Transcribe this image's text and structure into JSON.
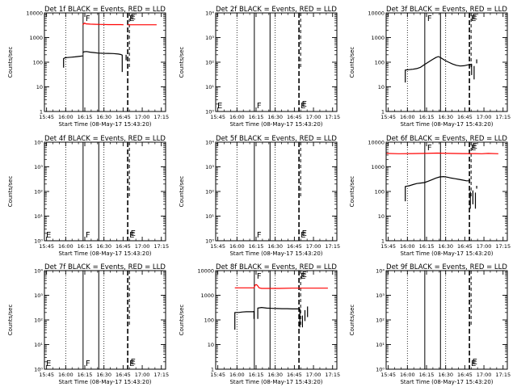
{
  "chart_data": [
    {
      "type": "line",
      "title": "Det 1f BLACK = Events, RED = LLD",
      "xlabel": "Start Time (08-May-17 15:43:20)",
      "ylabel": "Counts/sec",
      "ylog": true,
      "ylim": [
        1,
        10000
      ],
      "ytick_values": [
        1,
        10,
        100,
        1000,
        10000
      ],
      "ytick_labels": [
        "1",
        "10",
        "100",
        "1000",
        "10000"
      ],
      "xlim": [
        0,
        95
      ],
      "xtick_values": [
        1.67,
        16.67,
        31.67,
        46.67,
        61.67,
        76.67,
        91.67
      ],
      "xtick_labels": [
        "15:45",
        "16:00",
        "16:15",
        "16:30",
        "16:45",
        "17:00",
        "17:15"
      ],
      "flags": [
        "F",
        "E",
        "E"
      ],
      "series": [
        {
          "color": "#ff0000",
          "segments": [
            [
              [
                30,
                3300
              ],
              [
                30.5,
                3500
              ],
              [
                31.5,
                3900
              ],
              [
                32,
                3800
              ],
              [
                32.5,
                3600
              ],
              [
                36,
                3500
              ],
              [
                40,
                3450
              ],
              [
                45,
                3400
              ],
              [
                50,
                3350
              ],
              [
                55,
                3350
              ],
              [
                60,
                3350
              ],
              [
                62,
                3300
              ]
            ],
            [
              [
                65,
                3300
              ],
              [
                75,
                3300
              ],
              [
                88,
                3300
              ]
            ]
          ]
        },
        {
          "color": "#000000",
          "segments": [
            [
              [
                15,
                60
              ],
              [
                15,
                140
              ],
              [
                16,
                150
              ],
              [
                18,
                155
              ],
              [
                21,
                160
              ],
              [
                24,
                165
              ],
              [
                26,
                170
              ],
              [
                28,
                175
              ],
              [
                30,
                180
              ]
            ],
            [
              [
                30,
                240
              ],
              [
                31,
                265
              ],
              [
                33,
                270
              ],
              [
                36,
                255
              ],
              [
                39,
                245
              ],
              [
                42,
                235
              ],
              [
                46,
                230
              ],
              [
                50,
                228
              ],
              [
                54,
                225
              ],
              [
                58,
                215
              ],
              [
                60,
                205
              ],
              [
                61,
                195
              ],
              [
                61,
                40
              ]
            ],
            [
              [
                64,
                200
              ],
              [
                64,
                120
              ]
            ]
          ]
        }
      ]
    },
    {
      "type": "line",
      "title": "Det 2f BLACK = Events, RED = LLD",
      "xlabel": "Start Time (08-May-17 15:43:20)",
      "ylabel": "Counts/sec",
      "ylog": true,
      "ylim": [
        1,
        10000
      ],
      "ytick_values": [
        1,
        10,
        100,
        1000,
        10000
      ],
      "ytick_labels": [
        "10⁰",
        "10¹",
        "10²",
        "10³",
        "10⁴"
      ],
      "xlim": [
        0,
        95
      ],
      "xtick_values": [
        1.67,
        16.67,
        31.67,
        46.67,
        61.67,
        76.67,
        91.67
      ],
      "xtick_labels": [
        "15:45",
        "16:00",
        "16:15",
        "16:30",
        "16:45",
        "17:00",
        "17:15"
      ],
      "flags": [
        "E",
        "F",
        "E",
        "E"
      ],
      "series": []
    },
    {
      "type": "line",
      "title": "Det 3f BLACK = Events, RED = LLD",
      "xlabel": "Start Time (08-May-17 15:43:20)",
      "ylabel": "Counts/sec",
      "ylog": true,
      "ylim": [
        1,
        10000
      ],
      "ytick_values": [
        1,
        10,
        100,
        1000,
        10000
      ],
      "ytick_labels": [
        "1",
        "10",
        "100",
        "1000",
        "10000"
      ],
      "xlim": [
        0,
        95
      ],
      "xtick_values": [
        1.67,
        16.67,
        31.67,
        46.67,
        61.67,
        76.67,
        91.67
      ],
      "xtick_labels": [
        "15:45",
        "16:00",
        "16:15",
        "16:30",
        "16:45",
        "17:00",
        "17:15"
      ],
      "flags": [
        "F",
        "E",
        "E"
      ],
      "series": [
        {
          "color": "#000000",
          "segments": [
            [
              [
                15,
                15
              ],
              [
                15,
                48
              ],
              [
                18,
                50
              ],
              [
                21,
                52
              ],
              [
                24,
                55
              ],
              [
                27,
                62
              ],
              [
                30,
                80
              ],
              [
                33,
                100
              ],
              [
                36,
                125
              ],
              [
                39,
                155
              ],
              [
                41,
                170
              ],
              [
                43,
                150
              ],
              [
                46,
                120
              ],
              [
                49,
                100
              ],
              [
                52,
                85
              ],
              [
                55,
                75
              ],
              [
                58,
                70
              ],
              [
                61,
                72
              ],
              [
                64,
                78
              ],
              [
                66,
                80
              ],
              [
                67,
                85
              ]
            ],
            [
              [
                67,
                30
              ],
              [
                67,
                85
              ]
            ],
            [
              [
                69,
                20
              ],
              [
                69,
                70
              ]
            ],
            [
              [
                71,
                90
              ],
              [
                71,
                130
              ]
            ]
          ]
        }
      ]
    },
    {
      "type": "line",
      "title": "Det 4f BLACK = Events, RED = LLD",
      "xlabel": "Start Time (08-May-17 15:43:20)",
      "ylabel": "Counts/sec",
      "ylog": true,
      "ylim": [
        1,
        10000
      ],
      "ytick_values": [
        1,
        10,
        100,
        1000,
        10000
      ],
      "ytick_labels": [
        "10⁰",
        "10¹",
        "10²",
        "10³",
        "10⁴"
      ],
      "xlim": [
        0,
        95
      ],
      "xtick_values": [
        1.67,
        16.67,
        31.67,
        46.67,
        61.67,
        76.67,
        91.67
      ],
      "xtick_labels": [
        "15:45",
        "16:00",
        "16:15",
        "16:30",
        "16:45",
        "17:00",
        "17:15"
      ],
      "flags": [
        "E",
        "F",
        "E",
        "E"
      ],
      "series": []
    },
    {
      "type": "line",
      "title": "Det 5f BLACK = Events, RED = LLD",
      "xlabel": "Start Time (08-May-17 15:43:20)",
      "ylabel": "Counts/sec",
      "ylog": true,
      "ylim": [
        1,
        10000
      ],
      "ytick_values": [
        1,
        10,
        100,
        1000,
        10000
      ],
      "ytick_labels": [
        "10⁰",
        "10¹",
        "10²",
        "10³",
        "10⁴"
      ],
      "xlim": [
        0,
        95
      ],
      "xtick_values": [
        1.67,
        16.67,
        31.67,
        46.67,
        61.67,
        76.67,
        91.67
      ],
      "xtick_labels": [
        "15:45",
        "16:00",
        "16:15",
        "16:30",
        "16:45",
        "17:00",
        "17:15"
      ],
      "flags": [
        "F",
        "E",
        "E"
      ],
      "series": []
    },
    {
      "type": "line",
      "title": "Det 6f BLACK = Events, RED = LLD",
      "xlabel": "Start Time (08-May-17 15:43:20)",
      "ylabel": "Counts/sec",
      "ylog": true,
      "ylim": [
        1,
        10000
      ],
      "ytick_values": [
        1,
        10,
        100,
        1000,
        10000
      ],
      "ytick_labels": [
        "1",
        "10",
        "100",
        "1000",
        "10000"
      ],
      "xlim": [
        0,
        95
      ],
      "xtick_values": [
        1.67,
        16.67,
        31.67,
        46.67,
        61.67,
        76.67,
        91.67
      ],
      "xtick_labels": [
        "15:45",
        "16:00",
        "16:15",
        "16:30",
        "16:45",
        "17:00",
        "17:15"
      ],
      "flags": [
        "F",
        "E",
        "E"
      ],
      "series": [
        {
          "color": "#ff0000",
          "segments": [
            [
              [
                0,
                3500
              ],
              [
                10,
                3400
              ],
              [
                20,
                3450
              ],
              [
                30,
                3500
              ],
              [
                40,
                3600
              ],
              [
                50,
                3500
              ],
              [
                60,
                3450
              ],
              [
                70,
                3450
              ],
              [
                75,
                3400
              ],
              [
                80,
                3500
              ],
              [
                88,
                3400
              ]
            ]
          ]
        },
        {
          "color": "#000000",
          "segments": [
            [
              [
                15,
                40
              ],
              [
                15,
                160
              ],
              [
                18,
                170
              ],
              [
                21,
                190
              ],
              [
                24,
                210
              ],
              [
                27,
                220
              ],
              [
                30,
                230
              ],
              [
                33,
                260
              ],
              [
                36,
                300
              ],
              [
                39,
                350
              ],
              [
                42,
                390
              ],
              [
                45,
                400
              ],
              [
                48,
                380
              ],
              [
                51,
                350
              ],
              [
                54,
                330
              ],
              [
                57,
                310
              ],
              [
                60,
                290
              ],
              [
                63,
                270
              ],
              [
                66,
                270
              ]
            ],
            [
              [
                66,
                20
              ],
              [
                66,
                100
              ]
            ],
            [
              [
                68,
                30
              ],
              [
                68,
                110
              ]
            ],
            [
              [
                70,
                20
              ],
              [
                70,
                90
              ]
            ],
            [
              [
                71,
                130
              ],
              [
                71,
                170
              ]
            ]
          ]
        }
      ]
    },
    {
      "type": "line",
      "title": "Det 7f BLACK = Events, RED = LLD",
      "xlabel": "Start Time (08-May-17 15:43:20)",
      "ylabel": "Counts/sec",
      "ylog": true,
      "ylim": [
        1,
        10000
      ],
      "ytick_values": [
        1,
        10,
        100,
        1000,
        10000
      ],
      "ytick_labels": [
        "10⁰",
        "10¹",
        "10²",
        "10³",
        "10⁴"
      ],
      "xlim": [
        0,
        95
      ],
      "xtick_values": [
        1.67,
        16.67,
        31.67,
        46.67,
        61.67,
        76.67,
        91.67
      ],
      "xtick_labels": [
        "15:45",
        "16:00",
        "16:15",
        "16:30",
        "16:45",
        "17:00",
        "17:15"
      ],
      "flags": [
        "E",
        "F",
        "E",
        "E"
      ],
      "series": []
    },
    {
      "type": "line",
      "title": "Det 8f BLACK = Events, RED = LLD",
      "xlabel": "Start Time (08-May-17 15:43:20)",
      "ylabel": "Counts/sec",
      "ylog": true,
      "ylim": [
        1,
        10000
      ],
      "ytick_values": [
        1,
        10,
        100,
        1000,
        10000
      ],
      "ytick_labels": [
        "1",
        "10",
        "100",
        "1000",
        "10000"
      ],
      "xlim": [
        0,
        95
      ],
      "xtick_values": [
        1.67,
        16.67,
        31.67,
        46.67,
        61.67,
        76.67,
        91.67
      ],
      "xtick_labels": [
        "15:45",
        "16:00",
        "16:15",
        "16:30",
        "16:45",
        "17:00",
        "17:15"
      ],
      "flags": [
        "F",
        "E",
        "E"
      ],
      "series": [
        {
          "color": "#ff0000",
          "segments": [
            [
              [
                15,
                2000
              ],
              [
                20,
                2000
              ],
              [
                25,
                2000
              ],
              [
                30,
                2000
              ],
              [
                31,
                2600
              ],
              [
                32,
                2700
              ],
              [
                33,
                2400
              ],
              [
                34,
                2000
              ],
              [
                36,
                1900
              ],
              [
                40,
                1900
              ],
              [
                50,
                1900
              ],
              [
                60,
                1950
              ],
              [
                70,
                1950
              ],
              [
                78,
                1950
              ],
              [
                88,
                1950
              ]
            ]
          ]
        },
        {
          "color": "#000000",
          "segments": [
            [
              [
                15,
                40
              ],
              [
                15,
                200
              ],
              [
                18,
                200
              ],
              [
                21,
                210
              ],
              [
                24,
                215
              ],
              [
                27,
                215
              ],
              [
                29,
                215
              ],
              [
                30,
                220
              ],
              [
                30,
                110
              ]
            ],
            [
              [
                33,
                110
              ],
              [
                33,
                300
              ],
              [
                36,
                320
              ],
              [
                40,
                300
              ],
              [
                44,
                295
              ],
              [
                48,
                290
              ],
              [
                52,
                285
              ],
              [
                56,
                285
              ],
              [
                60,
                280
              ],
              [
                64,
                280
              ],
              [
                66,
                280
              ],
              [
                66,
                50
              ]
            ],
            [
              [
                68,
                50
              ],
              [
                68,
                150
              ]
            ],
            [
              [
                70,
                90
              ],
              [
                70,
                250
              ]
            ],
            [
              [
                72,
                130
              ],
              [
                72,
                350
              ]
            ]
          ]
        }
      ]
    },
    {
      "type": "line",
      "title": "Det 9f BLACK = Events, RED = LLD",
      "xlabel": "Start Time (08-May-17 15:43:20)",
      "ylabel": "Counts/sec",
      "ylog": true,
      "ylim": [
        1,
        10000
      ],
      "ytick_values": [
        1,
        10,
        100,
        1000,
        10000
      ],
      "ytick_labels": [
        "10⁰",
        "10¹",
        "10²",
        "10³",
        "10⁴"
      ],
      "xlim": [
        0,
        95
      ],
      "xtick_values": [
        1.67,
        16.67,
        31.67,
        46.67,
        61.67,
        76.67,
        91.67
      ],
      "xtick_labels": [
        "15:45",
        "16:00",
        "16:15",
        "16:30",
        "16:45",
        "17:00",
        "17:15"
      ],
      "flags": [
        "E",
        "E"
      ],
      "series": []
    }
  ]
}
